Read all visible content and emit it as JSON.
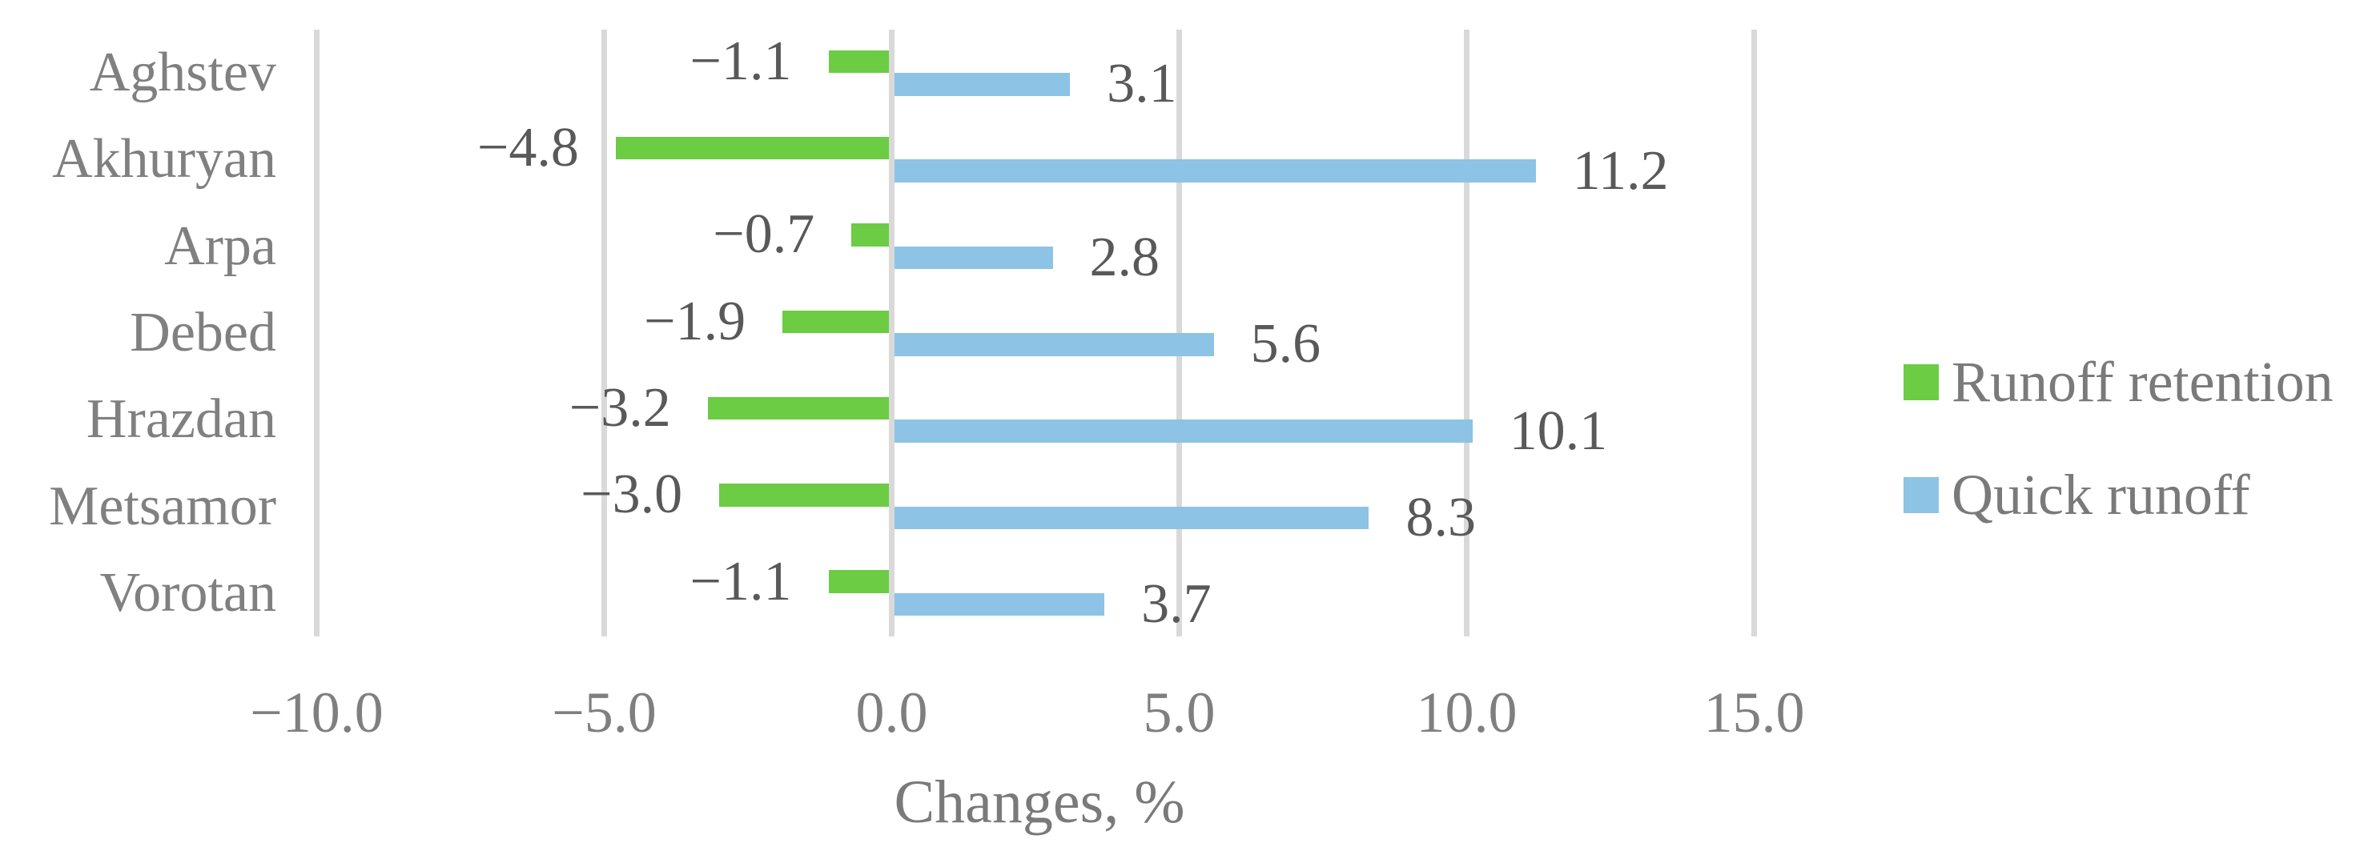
{
  "chart_data": {
    "type": "bar",
    "orientation": "horizontal",
    "title": "",
    "xlabel": "Changes, %",
    "ylabel": "",
    "xlim": [
      -10.0,
      15.0
    ],
    "xticks": [
      -10,
      -5,
      0,
      5,
      10,
      15
    ],
    "xtick_labels": [
      "−10.0",
      "−5.0",
      "0.0",
      "5.0",
      "10.0",
      "15.0"
    ],
    "grid": true,
    "legend_position": "right",
    "categories": [
      "Aghstev",
      "Akhuryan",
      "Arpa",
      "Debed",
      "Hrazdan",
      "Metsamor",
      "Vorotan"
    ],
    "series": [
      {
        "name": "Runoff retention",
        "color": "#6ccc44",
        "values": [
          -1.1,
          -4.8,
          -0.7,
          -1.9,
          -3.2,
          -3.0,
          -1.1
        ],
        "labels": [
          "−1.1",
          "−4.8",
          "−0.7",
          "−1.9",
          "−3.2",
          "−3.0",
          "−1.1"
        ]
      },
      {
        "name": "Quick runoff",
        "color": "#8dc3e5",
        "values": [
          3.1,
          11.2,
          2.8,
          5.6,
          10.1,
          8.3,
          3.7
        ],
        "labels": [
          "3.1",
          "11.2",
          "2.8",
          "5.6",
          "10.1",
          "8.3",
          "3.7"
        ]
      }
    ]
  },
  "legend": {
    "items": [
      {
        "label": "Runoff retention",
        "color": "#6ccc44"
      },
      {
        "label": "Quick runoff",
        "color": "#8dc3e5"
      }
    ]
  },
  "colors": {
    "gridline": "#d9d9d9",
    "category_text": "#808080",
    "tick_text": "#7f7f7f",
    "data_label_text": "#595959",
    "axis_title_text": "#7a7a7a",
    "background": "#ffffff"
  }
}
